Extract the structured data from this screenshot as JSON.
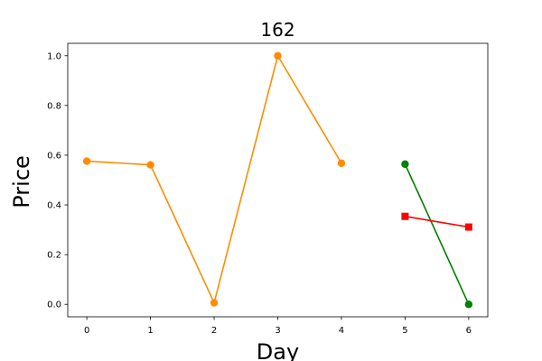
{
  "chart_data": {
    "type": "line",
    "title": "162",
    "xlabel": "Day",
    "ylabel": "Price",
    "xlim": [
      -0.3,
      6.3
    ],
    "ylim": [
      -0.05,
      1.05
    ],
    "xticks": [
      0,
      1,
      2,
      3,
      4,
      5,
      6
    ],
    "yticks": [
      0.0,
      0.2,
      0.4,
      0.6,
      0.8,
      1.0
    ],
    "xtick_labels": [
      "0",
      "1",
      "2",
      "3",
      "4",
      "5",
      "6"
    ],
    "ytick_labels": [
      "0.0",
      "0.2",
      "0.4",
      "0.6",
      "0.8",
      "1.0"
    ],
    "grid": false,
    "series": [
      {
        "color": "#ff8c00",
        "marker": "circle",
        "x": [
          0,
          1,
          2,
          3,
          4
        ],
        "y": [
          0.576,
          0.561,
          0.006,
          1.0,
          0.568
        ]
      },
      {
        "color": "#008000",
        "marker": "circle",
        "x": [
          5,
          6
        ],
        "y": [
          0.564,
          0.0
        ]
      },
      {
        "color": "#ff0000",
        "marker": "square",
        "x": [
          5,
          6
        ],
        "y": [
          0.354,
          0.311
        ]
      }
    ]
  }
}
